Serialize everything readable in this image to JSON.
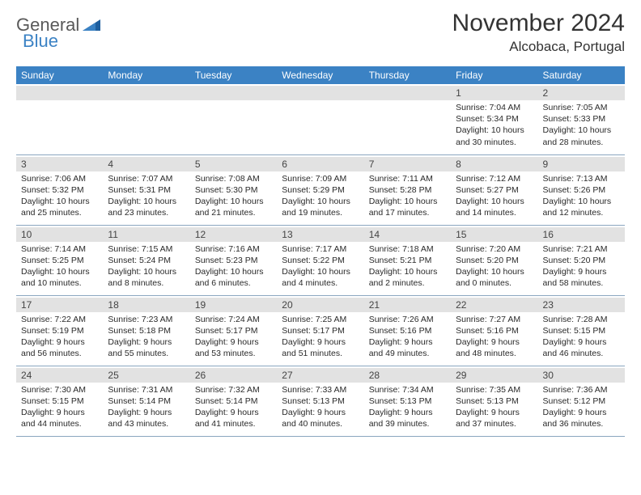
{
  "logo": {
    "text1": "General",
    "text2": "Blue"
  },
  "title": "November 2024",
  "location": "Alcobaca, Portugal",
  "columns": [
    "Sunday",
    "Monday",
    "Tuesday",
    "Wednesday",
    "Thursday",
    "Friday",
    "Saturday"
  ],
  "colors": {
    "header_bg": "#3b82c4",
    "header_text": "#ffffff",
    "daynum_bg": "#e2e2e2",
    "border": "#8aa6bf",
    "body_text": "#2a2a2a"
  },
  "weeks": [
    [
      {
        "num": "",
        "sunrise": "",
        "sunset": "",
        "daylight": ""
      },
      {
        "num": "",
        "sunrise": "",
        "sunset": "",
        "daylight": ""
      },
      {
        "num": "",
        "sunrise": "",
        "sunset": "",
        "daylight": ""
      },
      {
        "num": "",
        "sunrise": "",
        "sunset": "",
        "daylight": ""
      },
      {
        "num": "",
        "sunrise": "",
        "sunset": "",
        "daylight": ""
      },
      {
        "num": "1",
        "sunrise": "Sunrise: 7:04 AM",
        "sunset": "Sunset: 5:34 PM",
        "daylight": "Daylight: 10 hours and 30 minutes."
      },
      {
        "num": "2",
        "sunrise": "Sunrise: 7:05 AM",
        "sunset": "Sunset: 5:33 PM",
        "daylight": "Daylight: 10 hours and 28 minutes."
      }
    ],
    [
      {
        "num": "3",
        "sunrise": "Sunrise: 7:06 AM",
        "sunset": "Sunset: 5:32 PM",
        "daylight": "Daylight: 10 hours and 25 minutes."
      },
      {
        "num": "4",
        "sunrise": "Sunrise: 7:07 AM",
        "sunset": "Sunset: 5:31 PM",
        "daylight": "Daylight: 10 hours and 23 minutes."
      },
      {
        "num": "5",
        "sunrise": "Sunrise: 7:08 AM",
        "sunset": "Sunset: 5:30 PM",
        "daylight": "Daylight: 10 hours and 21 minutes."
      },
      {
        "num": "6",
        "sunrise": "Sunrise: 7:09 AM",
        "sunset": "Sunset: 5:29 PM",
        "daylight": "Daylight: 10 hours and 19 minutes."
      },
      {
        "num": "7",
        "sunrise": "Sunrise: 7:11 AM",
        "sunset": "Sunset: 5:28 PM",
        "daylight": "Daylight: 10 hours and 17 minutes."
      },
      {
        "num": "8",
        "sunrise": "Sunrise: 7:12 AM",
        "sunset": "Sunset: 5:27 PM",
        "daylight": "Daylight: 10 hours and 14 minutes."
      },
      {
        "num": "9",
        "sunrise": "Sunrise: 7:13 AM",
        "sunset": "Sunset: 5:26 PM",
        "daylight": "Daylight: 10 hours and 12 minutes."
      }
    ],
    [
      {
        "num": "10",
        "sunrise": "Sunrise: 7:14 AM",
        "sunset": "Sunset: 5:25 PM",
        "daylight": "Daylight: 10 hours and 10 minutes."
      },
      {
        "num": "11",
        "sunrise": "Sunrise: 7:15 AM",
        "sunset": "Sunset: 5:24 PM",
        "daylight": "Daylight: 10 hours and 8 minutes."
      },
      {
        "num": "12",
        "sunrise": "Sunrise: 7:16 AM",
        "sunset": "Sunset: 5:23 PM",
        "daylight": "Daylight: 10 hours and 6 minutes."
      },
      {
        "num": "13",
        "sunrise": "Sunrise: 7:17 AM",
        "sunset": "Sunset: 5:22 PM",
        "daylight": "Daylight: 10 hours and 4 minutes."
      },
      {
        "num": "14",
        "sunrise": "Sunrise: 7:18 AM",
        "sunset": "Sunset: 5:21 PM",
        "daylight": "Daylight: 10 hours and 2 minutes."
      },
      {
        "num": "15",
        "sunrise": "Sunrise: 7:20 AM",
        "sunset": "Sunset: 5:20 PM",
        "daylight": "Daylight: 10 hours and 0 minutes."
      },
      {
        "num": "16",
        "sunrise": "Sunrise: 7:21 AM",
        "sunset": "Sunset: 5:20 PM",
        "daylight": "Daylight: 9 hours and 58 minutes."
      }
    ],
    [
      {
        "num": "17",
        "sunrise": "Sunrise: 7:22 AM",
        "sunset": "Sunset: 5:19 PM",
        "daylight": "Daylight: 9 hours and 56 minutes."
      },
      {
        "num": "18",
        "sunrise": "Sunrise: 7:23 AM",
        "sunset": "Sunset: 5:18 PM",
        "daylight": "Daylight: 9 hours and 55 minutes."
      },
      {
        "num": "19",
        "sunrise": "Sunrise: 7:24 AM",
        "sunset": "Sunset: 5:17 PM",
        "daylight": "Daylight: 9 hours and 53 minutes."
      },
      {
        "num": "20",
        "sunrise": "Sunrise: 7:25 AM",
        "sunset": "Sunset: 5:17 PM",
        "daylight": "Daylight: 9 hours and 51 minutes."
      },
      {
        "num": "21",
        "sunrise": "Sunrise: 7:26 AM",
        "sunset": "Sunset: 5:16 PM",
        "daylight": "Daylight: 9 hours and 49 minutes."
      },
      {
        "num": "22",
        "sunrise": "Sunrise: 7:27 AM",
        "sunset": "Sunset: 5:16 PM",
        "daylight": "Daylight: 9 hours and 48 minutes."
      },
      {
        "num": "23",
        "sunrise": "Sunrise: 7:28 AM",
        "sunset": "Sunset: 5:15 PM",
        "daylight": "Daylight: 9 hours and 46 minutes."
      }
    ],
    [
      {
        "num": "24",
        "sunrise": "Sunrise: 7:30 AM",
        "sunset": "Sunset: 5:15 PM",
        "daylight": "Daylight: 9 hours and 44 minutes."
      },
      {
        "num": "25",
        "sunrise": "Sunrise: 7:31 AM",
        "sunset": "Sunset: 5:14 PM",
        "daylight": "Daylight: 9 hours and 43 minutes."
      },
      {
        "num": "26",
        "sunrise": "Sunrise: 7:32 AM",
        "sunset": "Sunset: 5:14 PM",
        "daylight": "Daylight: 9 hours and 41 minutes."
      },
      {
        "num": "27",
        "sunrise": "Sunrise: 7:33 AM",
        "sunset": "Sunset: 5:13 PM",
        "daylight": "Daylight: 9 hours and 40 minutes."
      },
      {
        "num": "28",
        "sunrise": "Sunrise: 7:34 AM",
        "sunset": "Sunset: 5:13 PM",
        "daylight": "Daylight: 9 hours and 39 minutes."
      },
      {
        "num": "29",
        "sunrise": "Sunrise: 7:35 AM",
        "sunset": "Sunset: 5:13 PM",
        "daylight": "Daylight: 9 hours and 37 minutes."
      },
      {
        "num": "30",
        "sunrise": "Sunrise: 7:36 AM",
        "sunset": "Sunset: 5:12 PM",
        "daylight": "Daylight: 9 hours and 36 minutes."
      }
    ]
  ]
}
